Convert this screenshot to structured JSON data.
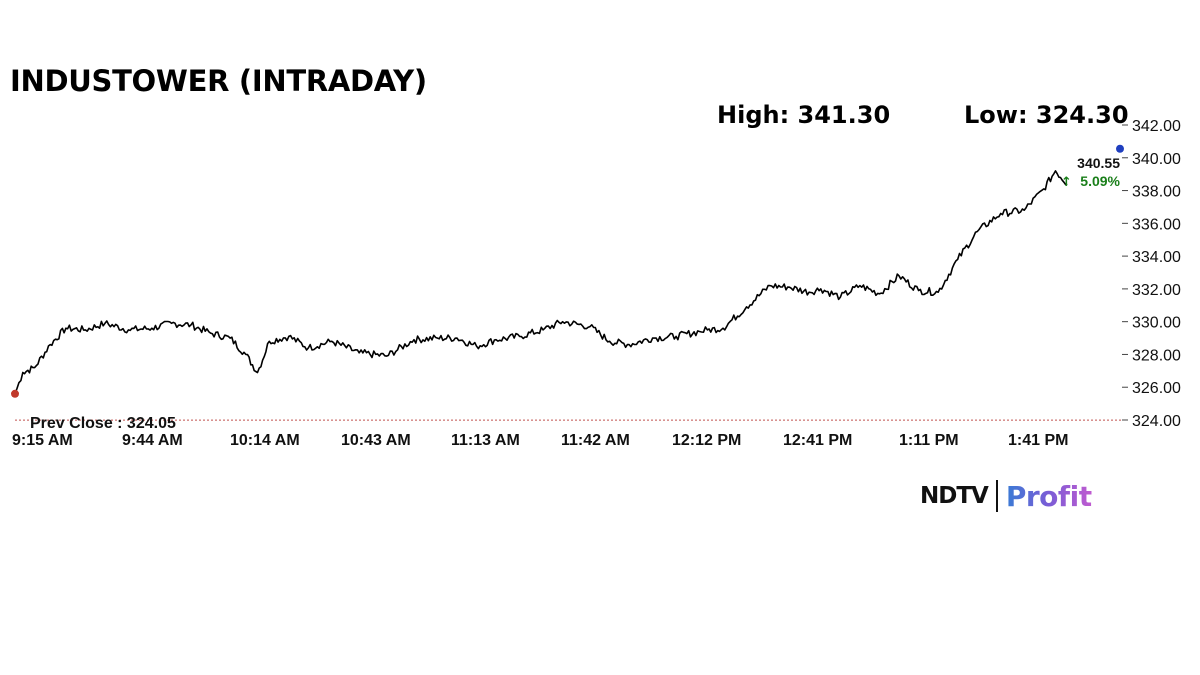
{
  "header": {
    "title": "INDUSTOWER (INTRADAY)",
    "high_label": "High: 341.30",
    "low_label": "Low: 324.30"
  },
  "logo": {
    "ndtv": "NDTV",
    "profit": "Profit"
  },
  "chart_data": {
    "type": "line",
    "title": "INDUSTOWER (INTRADAY)",
    "xlabel": "",
    "ylabel": "",
    "x_ticks": [
      "9:15 AM",
      "9:44 AM",
      "10:14 AM",
      "10:43 AM",
      "11:13 AM",
      "11:42 AM",
      "12:12 PM",
      "12:41 PM",
      "1:11 PM",
      "1:41 PM"
    ],
    "y_ticks": [
      "342.00",
      "340.00",
      "338.00",
      "336.00",
      "334.00",
      "332.00",
      "330.00",
      "328.00",
      "326.00",
      "324.00"
    ],
    "ylim": [
      324,
      342
    ],
    "grid": false,
    "high": 341.3,
    "low": 324.3,
    "prev_close": 324.05,
    "prev_close_label": "Prev Close : 324.05",
    "last_price": "340.55",
    "change_pct": "5.09%",
    "colors": {
      "line": "#000000",
      "prev_close_line": "#c0504d",
      "start_dot": "#c0392b",
      "change": "#1a7f1a",
      "end_marker": "#1f3fbf"
    },
    "series": [
      {
        "x": [
          "9:15",
          "9:17",
          "9:20",
          "9:24",
          "9:28",
          "9:33",
          "9:38",
          "9:44",
          "9:50",
          "9:55",
          "10:00",
          "10:05",
          "10:10",
          "10:14",
          "10:17",
          "10:20",
          "10:25",
          "10:30",
          "10:36",
          "10:43",
          "10:50",
          "10:57",
          "11:03",
          "11:08",
          "11:13",
          "11:18",
          "11:24",
          "11:30",
          "11:35",
          "11:42",
          "11:47",
          "11:52",
          "11:58",
          "12:04",
          "12:10",
          "12:12",
          "12:16",
          "12:22",
          "12:28",
          "12:33",
          "12:38",
          "12:41",
          "12:46",
          "12:51",
          "12:56",
          "13:01",
          "13:06",
          "13:11",
          "13:16",
          "13:21",
          "13:27",
          "13:33",
          "13:38",
          "13:41",
          "13:44"
        ],
        "values": [
          325.6,
          326.9,
          327.2,
          328.6,
          329.6,
          329.5,
          329.9,
          329.5,
          329.6,
          329.9,
          329.8,
          329.3,
          329.0,
          328.0,
          326.9,
          328.8,
          329.1,
          328.4,
          328.8,
          328.1,
          327.9,
          328.9,
          329.0,
          329.0,
          328.5,
          328.9,
          329.1,
          329.5,
          330.0,
          329.7,
          328.8,
          328.6,
          329.0,
          329.1,
          329.4,
          329.5,
          329.6,
          330.9,
          332.2,
          332.1,
          331.8,
          332.0,
          331.5,
          332.2,
          331.7,
          332.8,
          331.9,
          331.8,
          333.8,
          335.5,
          336.6,
          336.8,
          338.1,
          339.2,
          338.4
        ]
      }
    ]
  }
}
